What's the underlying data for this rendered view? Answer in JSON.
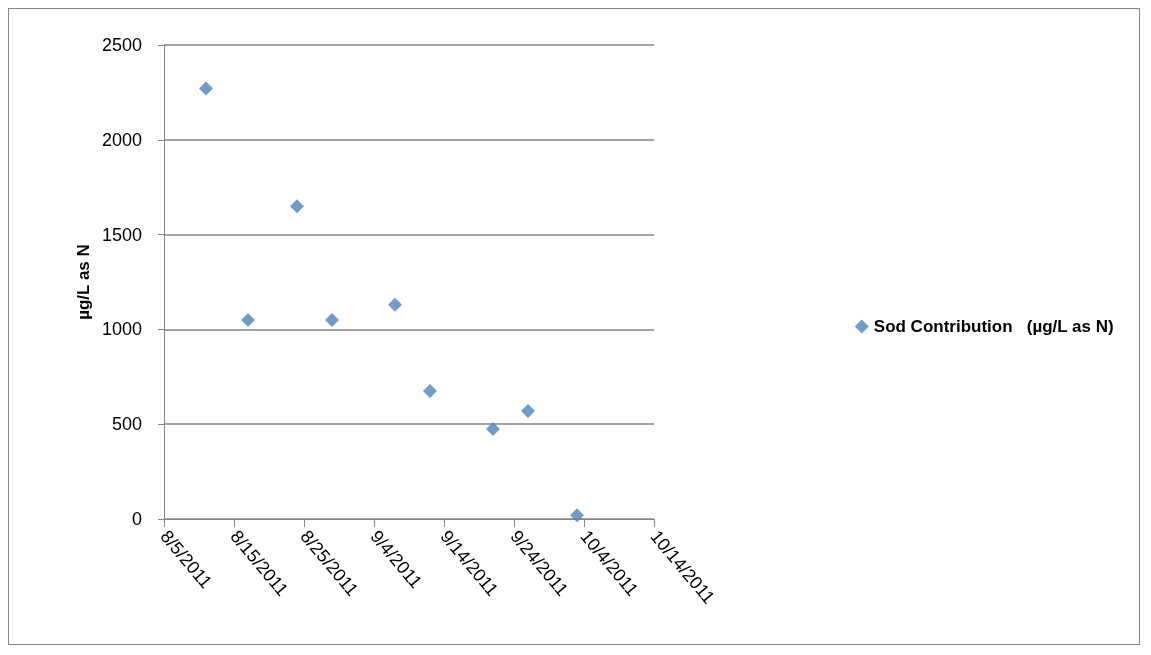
{
  "chart_data": {
    "type": "scatter",
    "ylabel": "µg/L as N",
    "x": [
      "2011-08-11",
      "2011-08-17",
      "2011-08-24",
      "2011-08-29",
      "2011-09-07",
      "2011-09-12",
      "2011-09-21",
      "2011-09-26",
      "2011-10-03"
    ],
    "series": [
      {
        "name": "Sod Contribution   (µg/L as N)",
        "color": "#4f81bd",
        "values": [
          2270,
          1050,
          1650,
          1050,
          1130,
          675,
          475,
          570,
          20
        ]
      }
    ],
    "xlim": [
      "2011-08-05",
      "2011-10-14"
    ],
    "xticks": [
      {
        "value": "2011-08-05",
        "label": "8/5/2011"
      },
      {
        "value": "2011-08-15",
        "label": "8/15/2011"
      },
      {
        "value": "2011-08-25",
        "label": "8/25/2011"
      },
      {
        "value": "2011-09-04",
        "label": "9/4/2011"
      },
      {
        "value": "2011-09-14",
        "label": "9/14/2011"
      },
      {
        "value": "2011-09-24",
        "label": "9/24/2011"
      },
      {
        "value": "2011-10-04",
        "label": "10/4/2011"
      },
      {
        "value": "2011-10-14",
        "label": "10/14/2011"
      }
    ],
    "ylim": [
      0,
      2500
    ],
    "yticks": [
      0,
      500,
      1000,
      1500,
      2000,
      2500
    ],
    "grid": "y",
    "legend": "right",
    "marker": "diamond"
  }
}
